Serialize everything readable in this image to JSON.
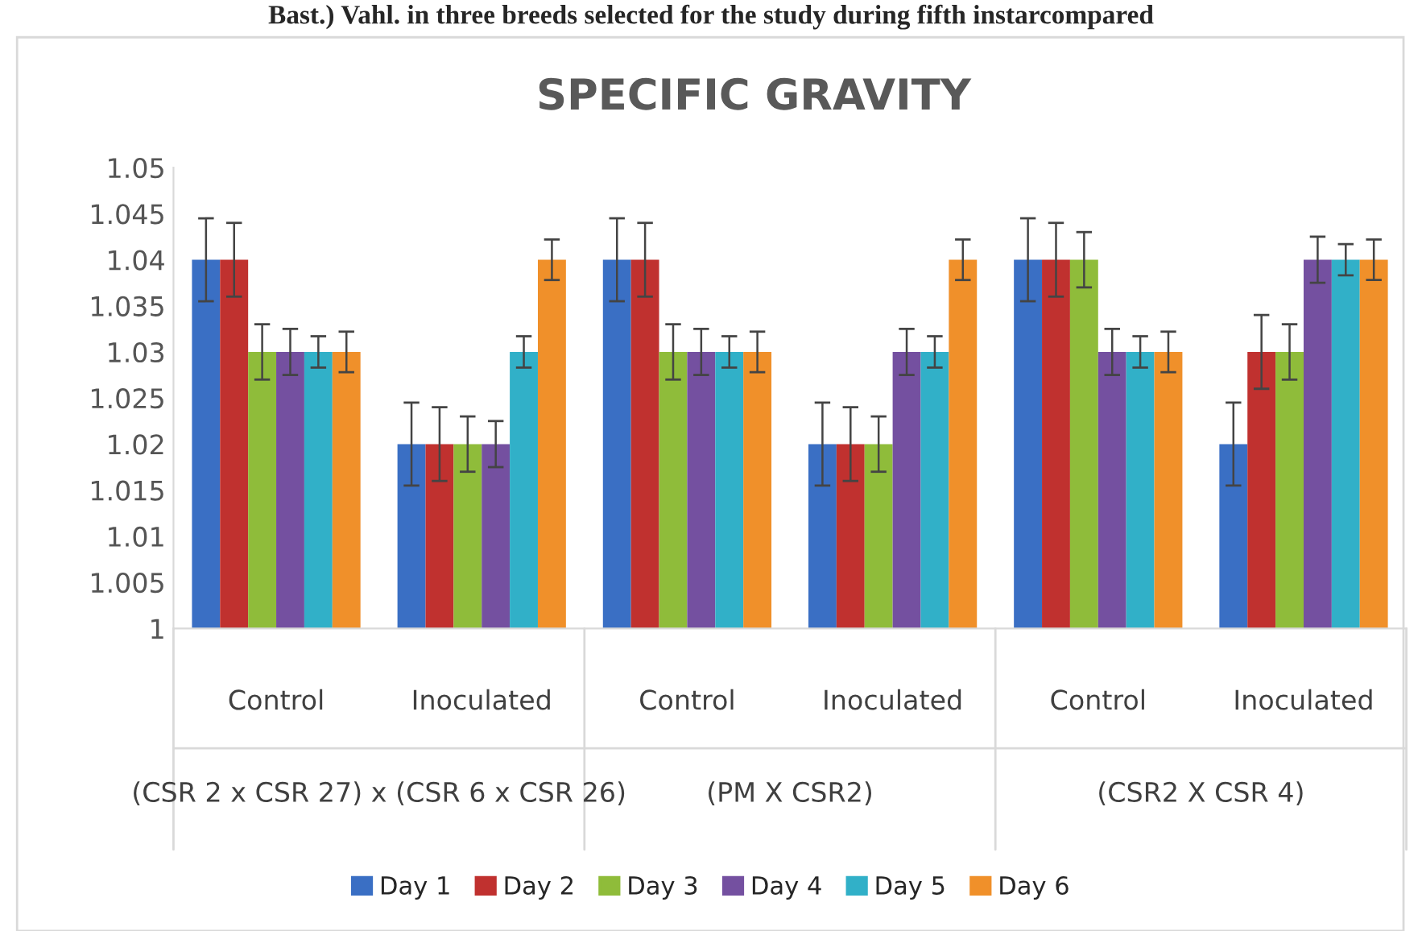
{
  "chart_data": {
    "type": "bar",
    "title": "SPECIFIC GRAVITY",
    "categories": [
      "Control",
      "Inoculated",
      "Control",
      "Inoculated",
      "Control",
      "Inoculated"
    ],
    "series": [
      {
        "name": "Day 1",
        "color": "#3a6fc4",
        "values": [
          1.04,
          1.02,
          1.04,
          1.02,
          1.04,
          1.02
        ],
        "errors": [
          0.0045,
          0.0045,
          0.0045,
          0.0045,
          0.0045,
          0.0045
        ]
      },
      {
        "name": "Day 2",
        "color": "#c0312f",
        "values": [
          1.04,
          1.02,
          1.04,
          1.02,
          1.04,
          1.03
        ],
        "errors": [
          0.004,
          0.004,
          0.004,
          0.004,
          0.004,
          0.004
        ]
      },
      {
        "name": "Day 3",
        "color": "#8fbc3a",
        "values": [
          1.03,
          1.02,
          1.03,
          1.02,
          1.04,
          1.03
        ],
        "errors": [
          0.003,
          0.003,
          0.003,
          0.003,
          0.003,
          0.003
        ]
      },
      {
        "name": "Day 4",
        "color": "#7450a0",
        "values": [
          1.03,
          1.02,
          1.03,
          1.03,
          1.03,
          1.04
        ],
        "errors": [
          0.0025,
          0.0025,
          0.0025,
          0.0025,
          0.0025,
          0.0025
        ]
      },
      {
        "name": "Day 5",
        "color": "#31b0c8",
        "values": [
          1.03,
          1.03,
          1.03,
          1.03,
          1.03,
          1.04
        ],
        "errors": [
          0.0017,
          0.0017,
          0.0017,
          0.0017,
          0.0017,
          0.0017
        ]
      },
      {
        "name": "Day 6",
        "color": "#f0902a",
        "values": [
          1.03,
          1.04,
          1.03,
          1.04,
          1.03,
          1.04
        ],
        "errors": [
          0.0022,
          0.0022,
          0.0022,
          0.0022,
          0.0022,
          0.0022
        ]
      }
    ],
    "ylim": [
      1,
      1.05
    ],
    "yticks": [
      1,
      1.005,
      1.01,
      1.015,
      1.02,
      1.025,
      1.03,
      1.035,
      1.04,
      1.045,
      1.05
    ],
    "grid": false,
    "legend": "bottom",
    "annotations": [
      "Bast.) Vahl. in three breeds selected for the study during fifth instarcompared",
      "(CSR 2 x CSR 27) x (CSR 6 x CSR 26)",
      "(PM X CSR2)",
      "(CSR2 X CSR 4)"
    ]
  }
}
